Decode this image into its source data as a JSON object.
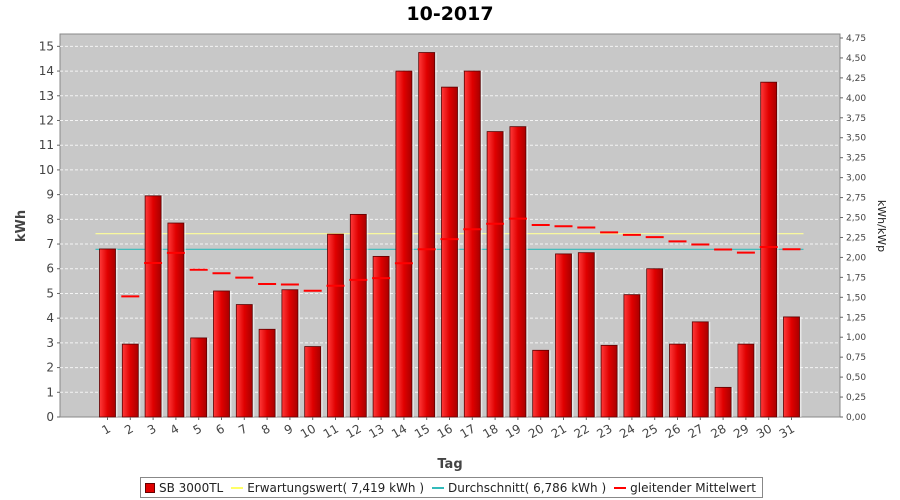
{
  "chart_data": {
    "type": "bar",
    "title": "10-2017",
    "xlabel": "Tag",
    "ylabel": "kWh",
    "ylabel_right": "kWh/kWp",
    "ylim": [
      0,
      15.5
    ],
    "ylim_right": [
      0,
      4.8
    ],
    "yticks": [
      "0",
      "1",
      "2",
      "3",
      "4",
      "5",
      "6",
      "7",
      "8",
      "9",
      "10",
      "11",
      "12",
      "13",
      "14",
      "15"
    ],
    "yticks_right": [
      "0,00",
      "0,25",
      "0,50",
      "0,75",
      "1,00",
      "1,25",
      "1,50",
      "1,75",
      "2,00",
      "2,25",
      "2,50",
      "2,75",
      "3,00",
      "3,25",
      "3,50",
      "3,75",
      "4,00",
      "4,25",
      "4,50",
      "4,75"
    ],
    "categories": [
      "1",
      "2",
      "3",
      "4",
      "5",
      "6",
      "7",
      "8",
      "9",
      "10",
      "11",
      "12",
      "13",
      "14",
      "15",
      "16",
      "17",
      "18",
      "19",
      "20",
      "21",
      "22",
      "23",
      "24",
      "25",
      "26",
      "27",
      "28",
      "29",
      "30",
      "31"
    ],
    "series": [
      {
        "name": "SB 3000TL",
        "kind": "bar",
        "color": "#e00000",
        "values": [
          6.8,
          2.95,
          8.95,
          7.85,
          3.2,
          5.1,
          4.55,
          3.55,
          5.15,
          2.85,
          7.4,
          8.2,
          6.5,
          14.0,
          14.75,
          13.35,
          14.0,
          11.55,
          11.75,
          2.7,
          6.6,
          6.65,
          2.9,
          4.95,
          6.0,
          2.95,
          3.85,
          1.2,
          2.95,
          13.55,
          4.05
        ]
      },
      {
        "name": "gleitender Mittelwert",
        "kind": "moving-average",
        "color": "#ff0000",
        "values": [
          null,
          4.88,
          6.23,
          6.64,
          5.96,
          5.82,
          5.64,
          5.38,
          5.36,
          5.11,
          5.31,
          5.55,
          5.62,
          6.22,
          6.79,
          7.2,
          7.6,
          7.82,
          8.03,
          7.77,
          7.72,
          7.67,
          7.47,
          7.37,
          7.28,
          7.11,
          6.98,
          6.78,
          6.65,
          6.88,
          6.79
        ]
      }
    ],
    "reference_lines": [
      {
        "name": "Erwartungswert",
        "value": 7.419,
        "color": "#ffff99"
      },
      {
        "name": "Durchschnitt",
        "value": 6.786,
        "color": "#33bbbb"
      }
    ],
    "grid": true,
    "legend_position": "bottom",
    "legend": [
      "SB 3000TL",
      "Erwartungswert( 7,419 kWh )",
      "Durchschnitt( 6,786 kWh )",
      "gleitender Mittelwert"
    ]
  }
}
